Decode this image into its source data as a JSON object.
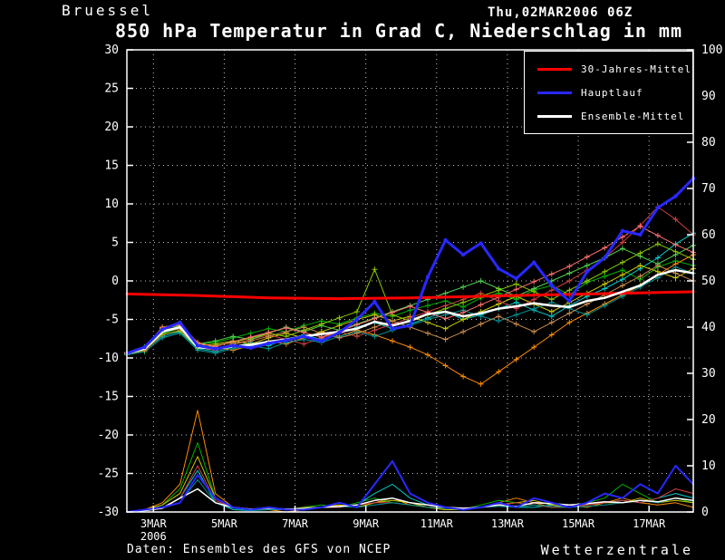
{
  "header": {
    "station": "Bruessel",
    "datetime": "Thu,02MAR2006 06Z",
    "title": "850 hPa Temperatur in Grad C, Niederschlag in mm"
  },
  "footer": {
    "source": "Daten: Ensembles des GFS von NCEP",
    "brand": "Wetterzentrale"
  },
  "legend": [
    {
      "label": "30-Jahres-Mittel",
      "color": "#ff0000"
    },
    {
      "label": "Hauptlauf",
      "color": "#2828ff"
    },
    {
      "label": "Ensemble-Mittel",
      "color": "#ffffff"
    }
  ],
  "chart_data": {
    "type": "line",
    "title": "850 hPa Temperatur in Grad C, Niederschlag in mm",
    "xlabel": "",
    "x_unit": "days since 02MAR2006 06Z",
    "x_range": [
      0,
      16
    ],
    "y_left": {
      "label": "",
      "range": [
        -30,
        30
      ],
      "ticks": [
        30,
        25,
        20,
        15,
        10,
        5,
        0,
        -5,
        -10,
        -15,
        -20,
        -25,
        -30
      ]
    },
    "y_right": {
      "label": "",
      "range": [
        0,
        100
      ],
      "ticks": [
        100,
        90,
        80,
        70,
        60,
        50,
        40,
        30,
        20,
        10,
        0
      ]
    },
    "x_ticks": [
      {
        "pos": 0.75,
        "label": "3MAR",
        "sub": "2006"
      },
      {
        "pos": 2.75,
        "label": "5MAR"
      },
      {
        "pos": 4.75,
        "label": "7MAR"
      },
      {
        "pos": 6.75,
        "label": "9MAR"
      },
      {
        "pos": 8.75,
        "label": "11MAR"
      },
      {
        "pos": 10.75,
        "label": "13MAR"
      },
      {
        "pos": 12.75,
        "label": "15MAR"
      },
      {
        "pos": 14.75,
        "label": "17MAR"
      }
    ],
    "series": [
      {
        "name": "member-01",
        "color": "#00b400",
        "axis": "left",
        "width": 1,
        "marker": "plus",
        "x_start": 0,
        "x_step": 0.5,
        "values": [
          -9.4,
          -8.9,
          -6.8,
          -6.2,
          -8.2,
          -8.0,
          -7.4,
          -6.8,
          -6.2,
          -6.6,
          -5.8,
          -5.2,
          -5.6,
          -4.8,
          -4.2,
          -4.6,
          -3.8,
          -3.2,
          -2.6,
          -3.4,
          -2.2,
          -1.6,
          -2.4,
          -1.2,
          -0.6,
          -1.8,
          -0.2,
          0.6,
          1.4,
          0.2,
          1.8,
          2.6,
          2.0
        ]
      },
      {
        "name": "member-02",
        "color": "#00c8c8",
        "axis": "left",
        "width": 1,
        "marker": "plus",
        "x_start": 0,
        "x_step": 0.5,
        "values": [
          -9.5,
          -9.0,
          -7.2,
          -6.6,
          -8.8,
          -9.2,
          -8.6,
          -8.0,
          -8.4,
          -7.6,
          -7.0,
          -7.6,
          -6.8,
          -6.0,
          -5.4,
          -6.2,
          -5.6,
          -4.8,
          -4.0,
          -5.0,
          -4.4,
          -3.6,
          -2.8,
          -3.8,
          -4.6,
          -3.2,
          -2.0,
          -1.0,
          0.2,
          1.6,
          3.0,
          4.8,
          6.2
        ]
      },
      {
        "name": "member-03",
        "color": "#ff8c00",
        "axis": "left",
        "width": 1,
        "marker": "plus",
        "x_start": 0,
        "x_step": 0.5,
        "values": [
          -9.3,
          -8.7,
          -6.0,
          -5.6,
          -8.0,
          -8.6,
          -9.0,
          -8.4,
          -7.8,
          -8.2,
          -7.4,
          -6.6,
          -7.2,
          -6.4,
          -7.0,
          -7.8,
          -8.6,
          -9.6,
          -11.0,
          -12.4,
          -13.4,
          -11.8,
          -10.2,
          -8.6,
          -7.0,
          -5.4,
          -4.2,
          -3.0,
          -1.8,
          -0.6,
          0.8,
          2.2,
          3.4
        ]
      },
      {
        "name": "member-04",
        "color": "#c8c800",
        "axis": "left",
        "width": 1,
        "marker": "plus",
        "x_start": 0,
        "x_step": 0.5,
        "values": [
          -9.4,
          -8.8,
          -6.4,
          -6.0,
          -8.4,
          -8.2,
          -7.8,
          -8.2,
          -7.4,
          -6.8,
          -7.4,
          -6.6,
          -5.8,
          -5.0,
          -4.4,
          -5.2,
          -4.6,
          -5.4,
          -6.2,
          -5.0,
          -4.0,
          -3.0,
          -2.0,
          -3.0,
          -4.0,
          -2.8,
          -1.6,
          -0.4,
          0.8,
          2.0,
          1.2,
          0.4,
          1.6
        ]
      },
      {
        "name": "member-05",
        "color": "#d04040",
        "axis": "left",
        "width": 1,
        "marker": "plus",
        "x_start": 0,
        "x_step": 0.5,
        "values": [
          -9.5,
          -9.1,
          -7.0,
          -6.4,
          -8.6,
          -9.0,
          -8.2,
          -7.6,
          -7.0,
          -7.6,
          -8.2,
          -7.4,
          -6.6,
          -7.2,
          -6.4,
          -5.6,
          -4.8,
          -4.0,
          -3.2,
          -2.4,
          -1.6,
          -2.6,
          -3.6,
          -2.4,
          -1.2,
          0.0,
          1.4,
          3.0,
          5.0,
          7.2,
          9.6,
          8.0,
          6.0
        ]
      },
      {
        "name": "member-06",
        "color": "#50d050",
        "axis": "left",
        "width": 1,
        "marker": "plus",
        "x_start": 0,
        "x_step": 0.5,
        "values": [
          -9.3,
          -8.6,
          -6.2,
          -5.8,
          -8.2,
          -7.8,
          -7.2,
          -7.6,
          -6.8,
          -6.0,
          -6.6,
          -5.8,
          -6.4,
          -5.6,
          -4.8,
          -4.0,
          -3.2,
          -2.4,
          -1.6,
          -0.8,
          0.0,
          -1.0,
          -2.0,
          -1.0,
          0.0,
          1.0,
          2.0,
          3.0,
          4.2,
          3.2,
          2.2,
          3.4,
          4.6
        ]
      },
      {
        "name": "member-07",
        "color": "#009090",
        "axis": "left",
        "width": 1,
        "marker": "plus",
        "x_start": 0,
        "x_step": 0.5,
        "values": [
          -9.6,
          -9.2,
          -7.4,
          -6.8,
          -9.0,
          -9.4,
          -8.8,
          -8.4,
          -8.8,
          -8.0,
          -7.6,
          -8.0,
          -7.2,
          -6.6,
          -7.2,
          -6.4,
          -5.8,
          -5.0,
          -4.4,
          -3.8,
          -4.6,
          -5.2,
          -4.4,
          -3.6,
          -2.8,
          -3.6,
          -4.4,
          -3.2,
          -2.0,
          -0.8,
          0.4,
          1.8,
          1.0
        ]
      },
      {
        "name": "member-08",
        "color": "#c88c50",
        "axis": "left",
        "width": 1,
        "marker": "plus",
        "x_start": 0,
        "x_step": 0.5,
        "values": [
          -9.4,
          -8.9,
          -6.6,
          -6.2,
          -8.4,
          -8.8,
          -8.2,
          -7.8,
          -7.2,
          -6.6,
          -6.0,
          -6.8,
          -7.4,
          -6.8,
          -6.0,
          -5.2,
          -6.0,
          -6.8,
          -7.6,
          -6.6,
          -5.6,
          -4.6,
          -5.6,
          -6.6,
          -5.4,
          -4.2,
          -3.0,
          -1.8,
          -0.6,
          0.6,
          2.0,
          1.0,
          0.0
        ]
      },
      {
        "name": "member-09",
        "color": "#8cc800",
        "axis": "left",
        "width": 1,
        "marker": "plus",
        "x_start": 0,
        "x_step": 0.5,
        "values": [
          -9.5,
          -9.0,
          -6.9,
          -6.5,
          -8.7,
          -8.4,
          -8.0,
          -7.4,
          -6.8,
          -7.2,
          -6.4,
          -5.6,
          -4.8,
          -4.0,
          1.5,
          -4.4,
          -5.2,
          -4.4,
          -3.6,
          -2.8,
          -2.0,
          -1.2,
          -0.4,
          -1.4,
          -2.4,
          -1.2,
          0.0,
          1.2,
          2.4,
          3.6,
          4.8,
          3.8,
          2.8
        ]
      },
      {
        "name": "member-10",
        "color": "#ff7070",
        "axis": "left",
        "width": 1,
        "marker": "plus",
        "x_start": 0,
        "x_step": 0.5,
        "values": [
          -9.3,
          -8.8,
          -6.1,
          -5.7,
          -8.1,
          -8.5,
          -7.9,
          -7.3,
          -6.7,
          -6.1,
          -6.7,
          -7.3,
          -6.5,
          -5.7,
          -4.9,
          -4.1,
          -3.3,
          -4.1,
          -4.9,
          -4.1,
          -3.1,
          -2.1,
          -1.1,
          -0.1,
          0.9,
          1.9,
          3.1,
          4.3,
          5.7,
          7.1,
          5.9,
          4.7,
          3.7
        ]
      },
      {
        "name": "30-Jahres-Mittel",
        "color": "#ff0000",
        "axis": "left",
        "width": 3,
        "marker": "none",
        "x_start": 0,
        "x_step": 2,
        "values": [
          -1.7,
          -1.9,
          -2.2,
          -2.3,
          -2.2,
          -2.0,
          -1.8,
          -1.6,
          -1.4
        ]
      },
      {
        "name": "Ensemble-Mittel",
        "color": "#ffffff",
        "axis": "left",
        "width": 2.5,
        "marker": "none",
        "x_start": 0,
        "x_step": 0.5,
        "values": [
          -9.4,
          -8.8,
          -6.6,
          -6.0,
          -8.6,
          -8.8,
          -8.5,
          -8.3,
          -7.9,
          -7.6,
          -7.2,
          -6.9,
          -6.6,
          -6.2,
          -5.3,
          -5.8,
          -5.2,
          -4.3,
          -4.0,
          -4.6,
          -4.2,
          -3.6,
          -3.3,
          -2.9,
          -3.2,
          -3.4,
          -2.6,
          -2.2,
          -1.4,
          -0.6,
          0.8,
          1.4,
          1.0
        ]
      },
      {
        "name": "Hauptlauf",
        "color": "#2828ff",
        "axis": "left",
        "width": 3,
        "marker": "dot",
        "x_start": 0,
        "x_step": 0.5,
        "values": [
          -9.4,
          -8.6,
          -6.3,
          -5.4,
          -8.4,
          -8.8,
          -8.4,
          -8.7,
          -8.1,
          -7.7,
          -7.2,
          -7.8,
          -6.7,
          -5.0,
          -2.7,
          -6.2,
          -5.8,
          0.5,
          5.3,
          3.4,
          4.9,
          1.6,
          0.3,
          2.4,
          -0.6,
          -2.6,
          1.2,
          3.0,
          6.5,
          6.0,
          9.5,
          11.0,
          13.3
        ]
      }
    ],
    "precip_series": [
      {
        "name": "precip-orange",
        "color": "#ff8c00",
        "axis": "right",
        "width": 1,
        "marker": "none",
        "x_start": 0,
        "x_step": 0.5,
        "values": [
          0,
          0.5,
          2,
          6,
          22,
          4,
          1,
          0.5,
          0.5,
          0,
          0.5,
          1,
          1.5,
          1,
          2,
          3,
          1.5,
          1,
          0.5,
          0.5,
          1,
          2,
          3,
          2,
          1,
          1.5,
          1,
          2,
          3,
          2,
          1.5,
          2,
          1
        ]
      },
      {
        "name": "precip-green",
        "color": "#00b400",
        "axis": "right",
        "width": 1,
        "marker": "none",
        "x_start": 0,
        "x_step": 0.5,
        "values": [
          0,
          0.4,
          1.5,
          5,
          15,
          3,
          1,
          0.5,
          0.5,
          0.5,
          1,
          1.5,
          1,
          2,
          3,
          2,
          1.5,
          1,
          1,
          0.5,
          1.5,
          2.5,
          2,
          1.5,
          1,
          1,
          2,
          3,
          6,
          4,
          2,
          3,
          2
        ]
      },
      {
        "name": "precip-cyan",
        "color": "#00c8c8",
        "axis": "right",
        "width": 1,
        "marker": "none",
        "x_start": 0,
        "x_step": 0.5,
        "values": [
          0,
          0.3,
          1,
          3,
          9,
          2,
          0.5,
          0.3,
          0.5,
          0.5,
          0.5,
          1,
          1,
          1.5,
          4,
          6,
          3,
          1.5,
          1,
          0.5,
          1,
          1.5,
          1,
          1,
          1.5,
          1,
          1.5,
          2,
          2.5,
          2,
          3,
          4,
          3
        ]
      },
      {
        "name": "precip-yellow",
        "color": "#c8c800",
        "axis": "right",
        "width": 1,
        "marker": "none",
        "x_start": 0,
        "x_step": 0.5,
        "values": [
          0,
          0.5,
          1.5,
          4,
          12,
          3,
          1,
          0.5,
          0.5,
          0.5,
          1,
          1,
          1.5,
          1,
          2,
          2.5,
          2,
          1,
          0.5,
          0.5,
          1,
          1.5,
          2,
          2.5,
          1.5,
          1,
          1.5,
          2,
          2,
          3,
          2,
          2.5,
          2
        ]
      },
      {
        "name": "precip-red",
        "color": "#d04040",
        "axis": "right",
        "width": 1,
        "marker": "none",
        "x_start": 0,
        "x_step": 0.5,
        "values": [
          0,
          0.4,
          1,
          3,
          10,
          2.5,
          1,
          0.5,
          0.5,
          0.5,
          0.5,
          1,
          1,
          1.5,
          2,
          2,
          1.5,
          1,
          1,
          0.5,
          1,
          1.5,
          2,
          1.5,
          1,
          1,
          1.5,
          2,
          2.5,
          2,
          3,
          5,
          4
        ]
      },
      {
        "name": "precip-teal",
        "color": "#009090",
        "axis": "right",
        "width": 1,
        "marker": "none",
        "x_start": 0,
        "x_step": 0.5,
        "values": [
          0,
          0.3,
          0.8,
          2,
          7,
          2,
          0.8,
          0.4,
          0.5,
          0.5,
          0.8,
          1,
          1.2,
          1,
          1.5,
          2,
          1.5,
          1,
          0.8,
          0.5,
          1,
          1.2,
          1,
          1.5,
          1.2,
          1,
          1.2,
          1.5,
          2,
          2.5,
          2,
          3,
          2.5
        ]
      },
      {
        "name": "precip-ensemble-mittel",
        "color": "#ffffff",
        "axis": "right",
        "width": 1.5,
        "marker": "none",
        "x_start": 0,
        "x_step": 0.5,
        "values": [
          0,
          0.3,
          0.8,
          3,
          5,
          2,
          1,
          0.6,
          0.8,
          0.6,
          0.7,
          1,
          1.2,
          1.5,
          2.5,
          3,
          2,
          1.5,
          1,
          0.8,
          1,
          1.5,
          1.2,
          2,
          1.8,
          1.5,
          1.8,
          2.2,
          2,
          2.5,
          2.2,
          3,
          2.5
        ]
      },
      {
        "name": "precip-hauptlauf",
        "color": "#2828ff",
        "axis": "right",
        "width": 2,
        "marker": "none",
        "x_start": 0,
        "x_step": 0.5,
        "values": [
          0,
          0.5,
          1,
          2,
          8,
          3,
          1,
          0.5,
          1,
          0.5,
          0.5,
          1,
          2,
          1,
          6,
          11,
          4,
          2,
          1,
          0.5,
          1,
          2,
          1,
          3,
          2,
          1,
          2,
          4,
          3,
          6,
          4,
          10,
          6
        ]
      }
    ]
  }
}
